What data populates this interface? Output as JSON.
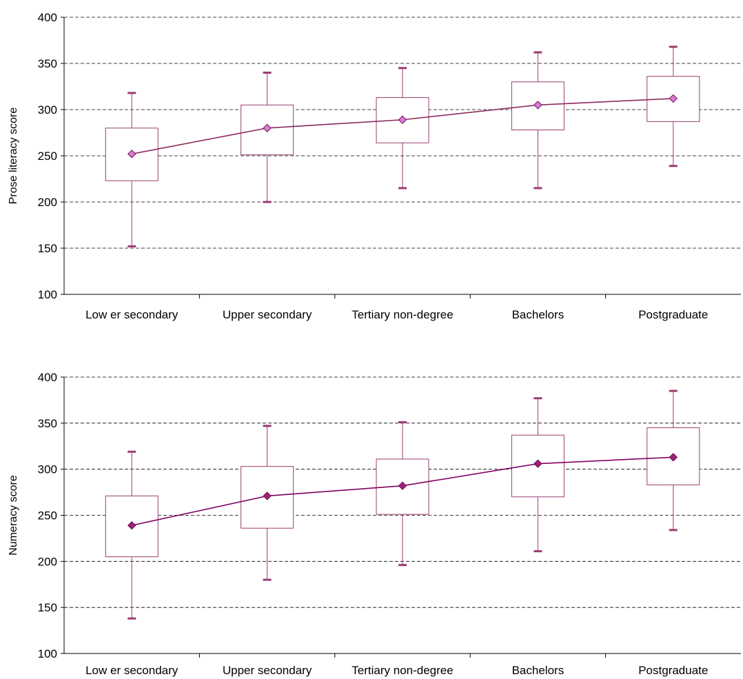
{
  "colors": {
    "box_stroke": "#9b3b6f",
    "whisker": "#9b3b6f",
    "mean_line_prose": "#8b2a5c",
    "mean_line_numeracy": "#800060",
    "marker_prose": "#d87ad6",
    "marker_numeracy": "#a0207a",
    "grid": "#000000"
  },
  "chart_data": [
    {
      "type": "box",
      "ylabel": "Prose literacy score",
      "ylim": [
        100,
        400
      ],
      "yticks": [
        100,
        150,
        200,
        250,
        300,
        350,
        400
      ],
      "ytick_labels": [
        "100",
        "150",
        "200",
        "250",
        "300",
        "350",
        "400"
      ],
      "grid": "dashed horizontal",
      "categories": [
        "Low er secondary",
        "Upper secondary",
        "Tertiary non-degree",
        "Bachelors",
        "Postgraduate"
      ],
      "boxes": [
        {
          "low": 152,
          "q1": 223,
          "q3": 280,
          "high": 318,
          "mean": 252
        },
        {
          "low": 200,
          "q1": 251,
          "q3": 305,
          "high": 340,
          "mean": 280
        },
        {
          "low": 215,
          "q1": 264,
          "q3": 313,
          "high": 345,
          "mean": 289
        },
        {
          "low": 215,
          "q1": 278,
          "q3": 330,
          "high": 362,
          "mean": 305
        },
        {
          "low": 239,
          "q1": 287,
          "q3": 336,
          "high": 368,
          "mean": 312
        }
      ]
    },
    {
      "type": "box",
      "ylabel": "Numeracy score",
      "ylim": [
        100,
        400
      ],
      "yticks": [
        100,
        150,
        200,
        250,
        300,
        350,
        400
      ],
      "ytick_labels": [
        "100",
        "150",
        "200",
        "250",
        "300",
        "350",
        "400"
      ],
      "grid": "dashed horizontal",
      "categories": [
        "Low er secondary",
        "Upper secondary",
        "Tertiary non-degree",
        "Bachelors",
        "Postgraduate"
      ],
      "boxes": [
        {
          "low": 138,
          "q1": 205,
          "q3": 271,
          "high": 319,
          "mean": 239
        },
        {
          "low": 180,
          "q1": 236,
          "q3": 303,
          "high": 347,
          "mean": 271
        },
        {
          "low": 196,
          "q1": 251,
          "q3": 311,
          "high": 351,
          "mean": 282
        },
        {
          "low": 211,
          "q1": 270,
          "q3": 337,
          "high": 377,
          "mean": 306
        },
        {
          "low": 234,
          "q1": 283,
          "q3": 345,
          "high": 385,
          "mean": 313
        }
      ]
    }
  ]
}
